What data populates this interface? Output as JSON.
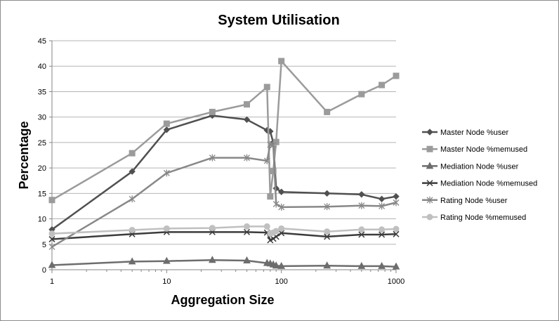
{
  "chart_data": {
    "type": "line",
    "title": "System Utilisation",
    "xlabel": "Aggregation Size",
    "ylabel": "Percentage",
    "x_scale": "log",
    "xlim": [
      1,
      1000
    ],
    "ylim": [
      0,
      45
    ],
    "x_ticks": [
      "1",
      "10",
      "100",
      "1000"
    ],
    "y_ticks": [
      "0",
      "5",
      "10",
      "15",
      "20",
      "25",
      "30",
      "35",
      "40",
      "45"
    ],
    "grid": "horizontal",
    "legend_position": "right",
    "series": [
      {
        "name": "Master Node %user",
        "color": "#505050",
        "marker": "diamond",
        "x": [
          1,
          5,
          10,
          25,
          50,
          75,
          80,
          85,
          90,
          100,
          250,
          500,
          750,
          1000
        ],
        "y": [
          7.9,
          19.3,
          27.5,
          30.3,
          29.5,
          27.4,
          27.2,
          25.0,
          16.0,
          15.3,
          15.0,
          14.8,
          13.9,
          14.4
        ]
      },
      {
        "name": "Master Node %memused",
        "color": "#9b9b9b",
        "marker": "square",
        "x": [
          1,
          5,
          10,
          25,
          50,
          75,
          80,
          85,
          90,
          100,
          250,
          500,
          750,
          1000
        ],
        "y": [
          13.7,
          22.9,
          28.7,
          31.0,
          32.5,
          35.9,
          14.4,
          19.4,
          25.1,
          41.0,
          31.0,
          34.5,
          36.3,
          38.1
        ]
      },
      {
        "name": "Mediation Node %user",
        "color": "#6d6d6d",
        "marker": "triangle",
        "x": [
          1,
          5,
          10,
          25,
          50,
          75,
          80,
          85,
          90,
          100,
          250,
          500,
          750,
          1000
        ],
        "y": [
          0.9,
          1.6,
          1.7,
          1.9,
          1.8,
          1.3,
          1.2,
          1.0,
          0.8,
          0.7,
          0.8,
          0.7,
          0.7,
          0.6
        ]
      },
      {
        "name": "Mediation Node %memused",
        "color": "#3c3c3c",
        "marker": "x",
        "x": [
          1,
          5,
          10,
          25,
          50,
          75,
          80,
          85,
          90,
          100,
          250,
          500,
          750,
          1000
        ],
        "y": [
          6.0,
          7.0,
          7.4,
          7.4,
          7.4,
          7.3,
          5.8,
          6.1,
          6.5,
          7.2,
          6.5,
          6.9,
          6.9,
          7.0
        ]
      },
      {
        "name": "Rating Node %user",
        "color": "#888888",
        "marker": "star",
        "x": [
          1,
          5,
          10,
          25,
          50,
          75,
          80,
          85,
          90,
          100,
          250,
          500,
          750,
          1000
        ],
        "y": [
          4.5,
          13.9,
          19.0,
          22.0,
          22.0,
          21.4,
          24.6,
          24.5,
          12.9,
          12.3,
          12.4,
          12.6,
          12.5,
          13.2
        ]
      },
      {
        "name": "Rating Node %memused",
        "color": "#c0c0c0",
        "marker": "circle",
        "x": [
          1,
          5,
          10,
          25,
          50,
          75,
          80,
          85,
          90,
          100,
          250,
          500,
          750,
          1000
        ],
        "y": [
          7.1,
          7.8,
          8.1,
          8.2,
          8.5,
          8.5,
          7.1,
          7.3,
          7.6,
          8.1,
          7.5,
          7.9,
          7.9,
          8.0
        ]
      }
    ]
  }
}
